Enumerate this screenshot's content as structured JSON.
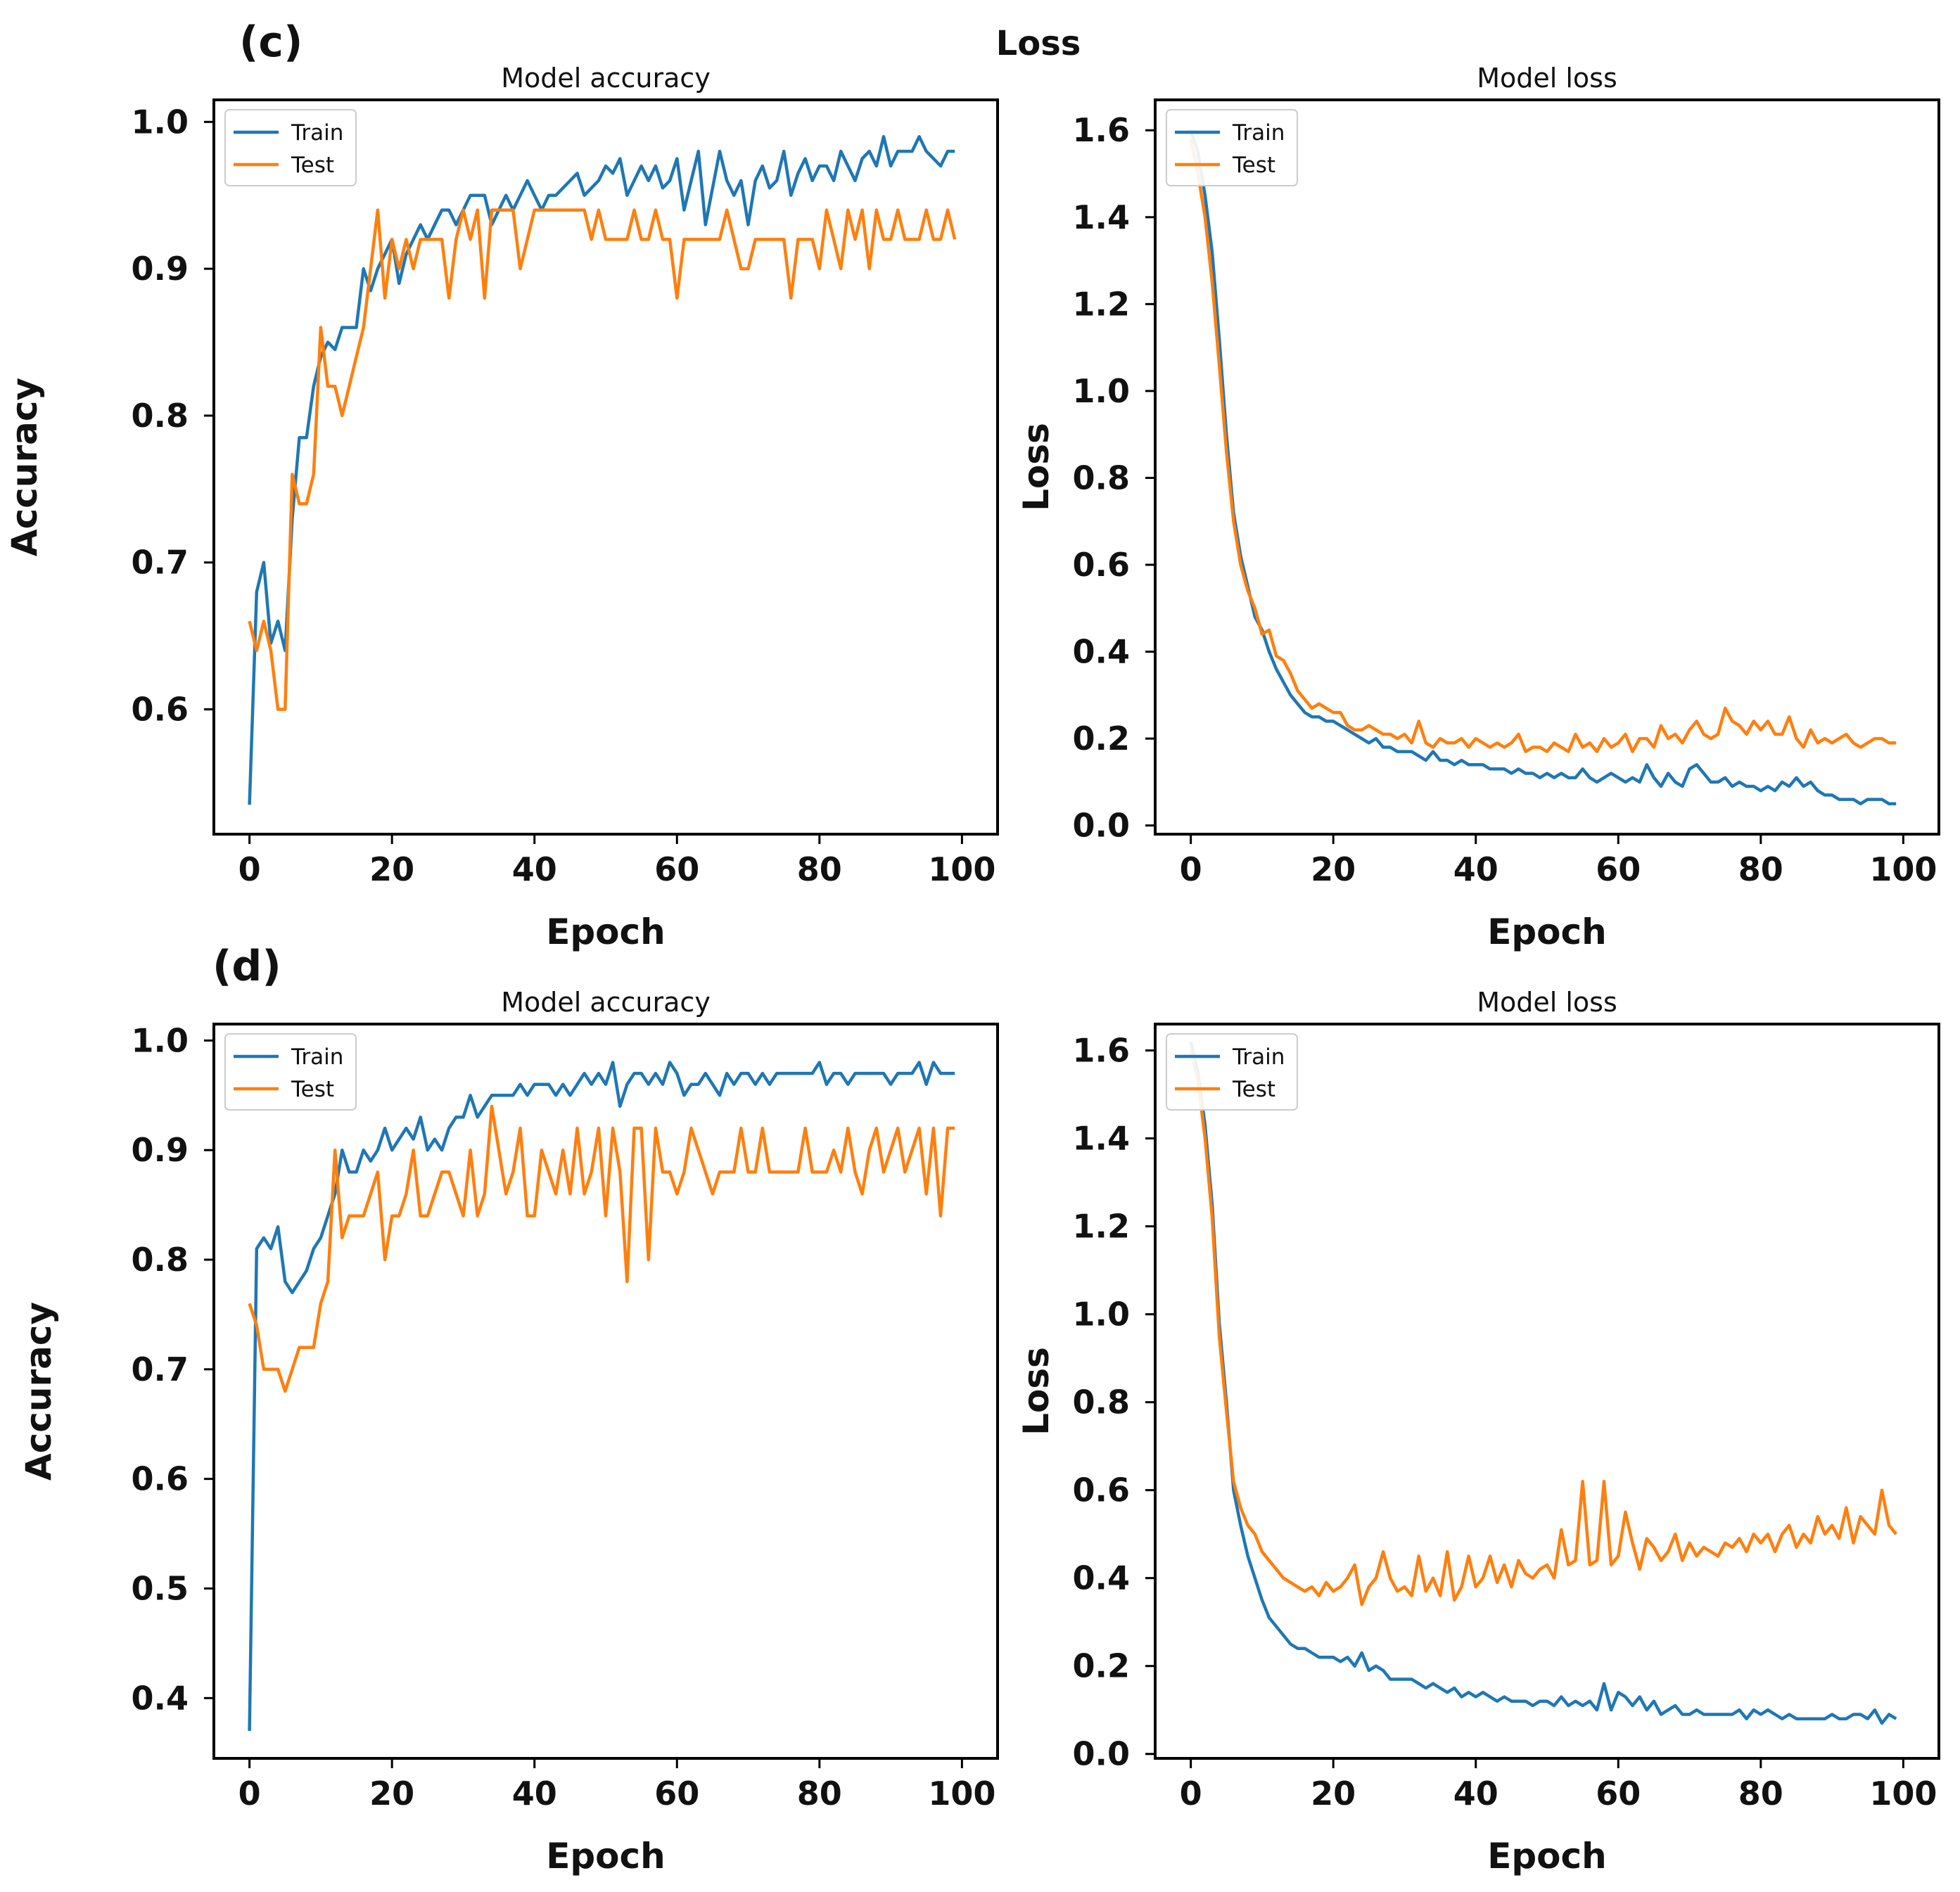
{
  "figure": {
    "heading": "Loss",
    "panel_labels": [
      "(c)",
      "(d)"
    ]
  },
  "colors": {
    "train": "#1f77b4",
    "test": "#ff7f0e"
  },
  "chart_data": [
    {
      "id": "c-accuracy",
      "type": "line",
      "title": "Model accuracy",
      "xlabel": "Epoch",
      "ylabel": "Accuracy",
      "xlim": [
        -5,
        105
      ],
      "ylim": [
        0.515,
        1.015
      ],
      "xticks": [
        0,
        20,
        40,
        60,
        80,
        100
      ],
      "xtick_labels": [
        "0",
        "20",
        "40",
        "60",
        "80",
        "100"
      ],
      "yticks": [
        0.6,
        0.7,
        0.8,
        0.9,
        1.0
      ],
      "ytick_labels": [
        "0.6",
        "0.7",
        "0.8",
        "0.9",
        "1.0"
      ],
      "legend": {
        "position": "upper-left",
        "entries": [
          "Train",
          "Test"
        ]
      },
      "series": [
        {
          "name": "Train",
          "values": [
            0.535,
            0.68,
            0.7,
            0.645,
            0.66,
            0.64,
            0.73,
            0.785,
            0.785,
            0.82,
            0.84,
            0.85,
            0.845,
            0.86,
            0.86,
            0.86,
            0.9,
            0.885,
            0.9,
            0.91,
            0.92,
            0.89,
            0.91,
            0.92,
            0.93,
            0.92,
            0.93,
            0.94,
            0.94,
            0.93,
            0.94,
            0.95,
            0.95,
            0.95,
            0.93,
            0.94,
            0.95,
            0.94,
            0.95,
            0.96,
            0.95,
            0.94,
            0.95,
            0.95,
            0.955,
            0.96,
            0.965,
            0.95,
            0.955,
            0.96,
            0.97,
            0.965,
            0.975,
            0.95,
            0.96,
            0.97,
            0.96,
            0.97,
            0.955,
            0.96,
            0.975,
            0.94,
            0.96,
            0.98,
            0.93,
            0.955,
            0.98,
            0.96,
            0.95,
            0.96,
            0.93,
            0.96,
            0.97,
            0.955,
            0.96,
            0.98,
            0.95,
            0.965,
            0.975,
            0.96,
            0.97,
            0.97,
            0.96,
            0.98,
            0.97,
            0.96,
            0.975,
            0.98,
            0.97,
            0.99,
            0.97,
            0.98,
            0.98,
            0.98,
            0.99,
            0.98,
            0.975,
            0.97,
            0.98,
            0.98
          ]
        },
        {
          "name": "Test",
          "values": [
            0.66,
            0.64,
            0.66,
            0.64,
            0.6,
            0.6,
            0.76,
            0.74,
            0.74,
            0.76,
            0.86,
            0.82,
            0.82,
            0.8,
            0.82,
            0.84,
            0.86,
            0.9,
            0.94,
            0.88,
            0.92,
            0.9,
            0.92,
            0.9,
            0.92,
            0.92,
            0.92,
            0.92,
            0.88,
            0.92,
            0.94,
            0.92,
            0.94,
            0.88,
            0.94,
            0.94,
            0.94,
            0.94,
            0.9,
            0.92,
            0.94,
            0.94,
            0.94,
            0.94,
            0.94,
            0.94,
            0.94,
            0.94,
            0.92,
            0.94,
            0.92,
            0.92,
            0.92,
            0.92,
            0.94,
            0.92,
            0.92,
            0.94,
            0.92,
            0.92,
            0.88,
            0.92,
            0.92,
            0.92,
            0.92,
            0.92,
            0.92,
            0.94,
            0.92,
            0.9,
            0.9,
            0.92,
            0.92,
            0.92,
            0.92,
            0.92,
            0.88,
            0.92,
            0.92,
            0.92,
            0.9,
            0.94,
            0.92,
            0.9,
            0.94,
            0.92,
            0.94,
            0.9,
            0.94,
            0.92,
            0.92,
            0.94,
            0.92,
            0.92,
            0.92,
            0.94,
            0.92,
            0.92,
            0.94,
            0.92
          ]
        }
      ]
    },
    {
      "id": "c-loss",
      "type": "line",
      "title": "Model loss",
      "xlabel": "Epoch",
      "ylabel": "Loss",
      "xlim": [
        -5,
        105
      ],
      "ylim": [
        -0.02,
        1.67
      ],
      "xticks": [
        0,
        20,
        40,
        60,
        80,
        100
      ],
      "xtick_labels": [
        "0",
        "20",
        "40",
        "60",
        "80",
        "100"
      ],
      "yticks": [
        0.0,
        0.2,
        0.4,
        0.6,
        0.8,
        1.0,
        1.2,
        1.4,
        1.6
      ],
      "ytick_labels": [
        "0.0",
        "0.2",
        "0.4",
        "0.6",
        "0.8",
        "1.0",
        "1.2",
        "1.4",
        "1.6"
      ],
      "legend": {
        "position": "upper-left",
        "entries": [
          "Train",
          "Test"
        ]
      },
      "series": [
        {
          "name": "Train",
          "values": [
            1.6,
            1.55,
            1.45,
            1.32,
            1.12,
            0.9,
            0.72,
            0.62,
            0.55,
            0.48,
            0.45,
            0.4,
            0.36,
            0.33,
            0.3,
            0.28,
            0.26,
            0.25,
            0.25,
            0.24,
            0.24,
            0.23,
            0.22,
            0.21,
            0.2,
            0.19,
            0.2,
            0.18,
            0.18,
            0.17,
            0.17,
            0.17,
            0.16,
            0.15,
            0.17,
            0.15,
            0.15,
            0.14,
            0.15,
            0.14,
            0.14,
            0.14,
            0.13,
            0.13,
            0.13,
            0.12,
            0.13,
            0.12,
            0.12,
            0.11,
            0.12,
            0.11,
            0.12,
            0.11,
            0.11,
            0.13,
            0.11,
            0.1,
            0.11,
            0.12,
            0.11,
            0.1,
            0.11,
            0.1,
            0.14,
            0.11,
            0.09,
            0.12,
            0.1,
            0.09,
            0.13,
            0.14,
            0.12,
            0.1,
            0.1,
            0.11,
            0.09,
            0.1,
            0.09,
            0.09,
            0.08,
            0.09,
            0.08,
            0.1,
            0.09,
            0.11,
            0.09,
            0.1,
            0.08,
            0.07,
            0.07,
            0.06,
            0.06,
            0.06,
            0.05,
            0.06,
            0.06,
            0.06,
            0.05,
            0.05
          ]
        },
        {
          "name": "Test",
          "values": [
            1.58,
            1.5,
            1.4,
            1.25,
            1.06,
            0.86,
            0.7,
            0.6,
            0.54,
            0.5,
            0.44,
            0.45,
            0.39,
            0.38,
            0.35,
            0.31,
            0.29,
            0.27,
            0.28,
            0.27,
            0.26,
            0.26,
            0.23,
            0.22,
            0.22,
            0.23,
            0.22,
            0.21,
            0.21,
            0.2,
            0.21,
            0.19,
            0.24,
            0.19,
            0.18,
            0.2,
            0.19,
            0.19,
            0.2,
            0.18,
            0.2,
            0.19,
            0.18,
            0.19,
            0.18,
            0.19,
            0.21,
            0.17,
            0.18,
            0.18,
            0.17,
            0.19,
            0.18,
            0.17,
            0.21,
            0.18,
            0.19,
            0.17,
            0.2,
            0.18,
            0.19,
            0.21,
            0.17,
            0.2,
            0.2,
            0.18,
            0.23,
            0.2,
            0.21,
            0.19,
            0.22,
            0.24,
            0.21,
            0.2,
            0.21,
            0.27,
            0.24,
            0.23,
            0.21,
            0.24,
            0.22,
            0.24,
            0.21,
            0.21,
            0.25,
            0.2,
            0.18,
            0.22,
            0.19,
            0.2,
            0.19,
            0.2,
            0.21,
            0.19,
            0.18,
            0.19,
            0.2,
            0.2,
            0.19,
            0.19
          ]
        }
      ]
    },
    {
      "id": "d-accuracy",
      "type": "line",
      "title": "Model accuracy",
      "xlabel": "Epoch",
      "ylabel": "Accuracy",
      "xlim": [
        -5,
        105
      ],
      "ylim": [
        0.345,
        1.015
      ],
      "xticks": [
        0,
        20,
        40,
        60,
        80,
        100
      ],
      "xtick_labels": [
        "0",
        "20",
        "40",
        "60",
        "80",
        "100"
      ],
      "yticks": [
        0.4,
        0.5,
        0.6,
        0.7,
        0.8,
        0.9,
        1.0
      ],
      "ytick_labels": [
        "0.4",
        "0.5",
        "0.6",
        "0.7",
        "0.8",
        "0.9",
        "1.0"
      ],
      "legend": {
        "position": "upper-left",
        "entries": [
          "Train",
          "Test"
        ]
      },
      "series": [
        {
          "name": "Train",
          "values": [
            0.37,
            0.81,
            0.82,
            0.81,
            0.83,
            0.78,
            0.77,
            0.78,
            0.79,
            0.81,
            0.82,
            0.84,
            0.86,
            0.9,
            0.88,
            0.88,
            0.9,
            0.89,
            0.9,
            0.92,
            0.9,
            0.91,
            0.92,
            0.91,
            0.93,
            0.9,
            0.91,
            0.9,
            0.92,
            0.93,
            0.93,
            0.95,
            0.93,
            0.94,
            0.95,
            0.95,
            0.95,
            0.95,
            0.96,
            0.95,
            0.96,
            0.96,
            0.96,
            0.95,
            0.96,
            0.95,
            0.96,
            0.97,
            0.96,
            0.97,
            0.96,
            0.98,
            0.94,
            0.96,
            0.97,
            0.97,
            0.96,
            0.97,
            0.96,
            0.98,
            0.97,
            0.95,
            0.96,
            0.96,
            0.97,
            0.96,
            0.95,
            0.97,
            0.96,
            0.97,
            0.97,
            0.96,
            0.97,
            0.96,
            0.97,
            0.97,
            0.97,
            0.97,
            0.97,
            0.97,
            0.98,
            0.96,
            0.97,
            0.97,
            0.96,
            0.97,
            0.97,
            0.97,
            0.97,
            0.97,
            0.96,
            0.97,
            0.97,
            0.97,
            0.98,
            0.96,
            0.98,
            0.97,
            0.97,
            0.97
          ]
        },
        {
          "name": "Test",
          "values": [
            0.76,
            0.74,
            0.7,
            0.7,
            0.7,
            0.68,
            0.7,
            0.72,
            0.72,
            0.72,
            0.76,
            0.78,
            0.9,
            0.82,
            0.84,
            0.84,
            0.84,
            0.86,
            0.88,
            0.8,
            0.84,
            0.84,
            0.86,
            0.9,
            0.84,
            0.84,
            0.86,
            0.88,
            0.88,
            0.86,
            0.84,
            0.9,
            0.84,
            0.86,
            0.94,
            0.9,
            0.86,
            0.88,
            0.92,
            0.84,
            0.84,
            0.9,
            0.88,
            0.86,
            0.9,
            0.86,
            0.92,
            0.86,
            0.88,
            0.92,
            0.84,
            0.92,
            0.88,
            0.78,
            0.92,
            0.92,
            0.8,
            0.92,
            0.88,
            0.88,
            0.86,
            0.88,
            0.92,
            0.9,
            0.88,
            0.86,
            0.88,
            0.88,
            0.88,
            0.92,
            0.88,
            0.88,
            0.92,
            0.88,
            0.88,
            0.88,
            0.88,
            0.88,
            0.92,
            0.88,
            0.88,
            0.88,
            0.9,
            0.88,
            0.92,
            0.88,
            0.86,
            0.9,
            0.92,
            0.88,
            0.9,
            0.92,
            0.88,
            0.9,
            0.92,
            0.86,
            0.92,
            0.84,
            0.92,
            0.92
          ]
        }
      ]
    },
    {
      "id": "d-loss",
      "type": "line",
      "title": "Model loss",
      "xlabel": "Epoch",
      "ylabel": "Loss",
      "xlim": [
        -5,
        105
      ],
      "ylim": [
        -0.01,
        1.66
      ],
      "xticks": [
        0,
        20,
        40,
        60,
        80,
        100
      ],
      "xtick_labels": [
        "0",
        "20",
        "40",
        "60",
        "80",
        "100"
      ],
      "yticks": [
        0.0,
        0.2,
        0.4,
        0.6,
        0.8,
        1.0,
        1.2,
        1.4,
        1.6
      ],
      "ytick_labels": [
        "0.0",
        "0.2",
        "0.4",
        "0.6",
        "0.8",
        "1.0",
        "1.2",
        "1.4",
        "1.6"
      ],
      "legend": {
        "position": "upper-left",
        "entries": [
          "Train",
          "Test"
        ]
      },
      "series": [
        {
          "name": "Train",
          "values": [
            1.62,
            1.55,
            1.43,
            1.25,
            0.98,
            0.8,
            0.6,
            0.52,
            0.45,
            0.4,
            0.35,
            0.31,
            0.29,
            0.27,
            0.25,
            0.24,
            0.24,
            0.23,
            0.22,
            0.22,
            0.22,
            0.21,
            0.22,
            0.2,
            0.23,
            0.19,
            0.2,
            0.19,
            0.17,
            0.17,
            0.17,
            0.17,
            0.16,
            0.15,
            0.16,
            0.15,
            0.14,
            0.15,
            0.13,
            0.14,
            0.13,
            0.14,
            0.13,
            0.12,
            0.13,
            0.12,
            0.12,
            0.12,
            0.11,
            0.12,
            0.12,
            0.11,
            0.13,
            0.11,
            0.12,
            0.11,
            0.12,
            0.1,
            0.16,
            0.1,
            0.14,
            0.13,
            0.11,
            0.13,
            0.1,
            0.12,
            0.09,
            0.1,
            0.11,
            0.09,
            0.09,
            0.1,
            0.09,
            0.09,
            0.09,
            0.09,
            0.09,
            0.1,
            0.08,
            0.1,
            0.09,
            0.1,
            0.09,
            0.08,
            0.09,
            0.08,
            0.08,
            0.08,
            0.08,
            0.08,
            0.09,
            0.08,
            0.08,
            0.09,
            0.09,
            0.08,
            0.1,
            0.07,
            0.09,
            0.08
          ]
        },
        {
          "name": "Test",
          "values": [
            1.6,
            1.53,
            1.4,
            1.22,
            0.95,
            0.78,
            0.62,
            0.56,
            0.52,
            0.5,
            0.46,
            0.44,
            0.42,
            0.4,
            0.39,
            0.38,
            0.37,
            0.38,
            0.36,
            0.39,
            0.37,
            0.38,
            0.4,
            0.43,
            0.34,
            0.38,
            0.4,
            0.46,
            0.4,
            0.37,
            0.38,
            0.36,
            0.45,
            0.37,
            0.4,
            0.36,
            0.46,
            0.35,
            0.38,
            0.45,
            0.38,
            0.4,
            0.45,
            0.39,
            0.43,
            0.38,
            0.44,
            0.41,
            0.4,
            0.42,
            0.43,
            0.4,
            0.51,
            0.43,
            0.44,
            0.62,
            0.43,
            0.44,
            0.62,
            0.43,
            0.45,
            0.55,
            0.48,
            0.42,
            0.49,
            0.47,
            0.44,
            0.46,
            0.5,
            0.44,
            0.48,
            0.45,
            0.47,
            0.46,
            0.45,
            0.48,
            0.47,
            0.49,
            0.46,
            0.5,
            0.48,
            0.5,
            0.46,
            0.5,
            0.52,
            0.47,
            0.5,
            0.48,
            0.54,
            0.5,
            0.52,
            0.49,
            0.56,
            0.48,
            0.54,
            0.52,
            0.5,
            0.6,
            0.52,
            0.5
          ]
        }
      ]
    }
  ]
}
